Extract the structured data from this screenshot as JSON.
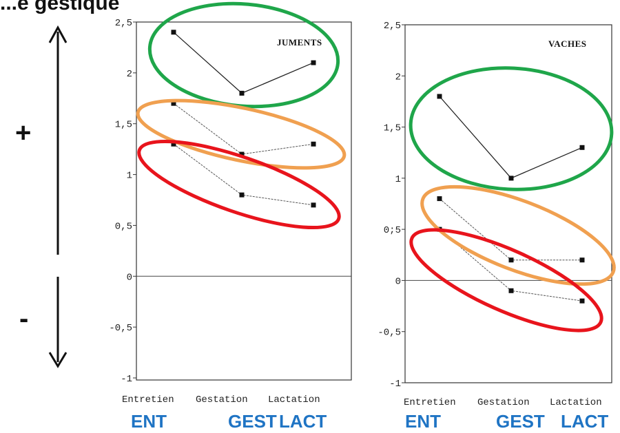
{
  "heading_fragment": "...e gestique",
  "signs": {
    "plus": "+",
    "minus": "-"
  },
  "colors": {
    "green": "#1fa64a",
    "orange": "#f0a050",
    "red": "#e8141c",
    "blue_label": "#1f74c4"
  },
  "chart_data": [
    {
      "type": "line",
      "title": "JUMENTS",
      "categories": [
        "Entretien",
        "Gestation",
        "Lactation"
      ],
      "category_labels": [
        "ENT",
        "GEST",
        "LACT"
      ],
      "y_ticks": [
        "2,5",
        "2",
        "1,5",
        "1",
        "0,5",
        "0",
        "-0,5",
        "-1"
      ],
      "ylim": [
        -1,
        2.5
      ],
      "series": [
        {
          "values": [
            2.4,
            1.8,
            2.1
          ],
          "highlight": "green"
        },
        {
          "values": [
            1.7,
            1.2,
            1.3
          ],
          "highlight": "orange"
        },
        {
          "values": [
            1.3,
            0.8,
            0.7
          ],
          "highlight": "red"
        }
      ]
    },
    {
      "type": "line",
      "title": "VACHES",
      "categories": [
        "Entretien",
        "Gestation",
        "Lactation"
      ],
      "category_labels": [
        "ENT",
        "GEST",
        "LACT"
      ],
      "y_ticks": [
        "2,5",
        "2",
        "1,5",
        "1",
        "0;5",
        "0",
        "-0,5",
        "-1"
      ],
      "ylim": [
        -1,
        2.5
      ],
      "series": [
        {
          "values": [
            1.8,
            1.0,
            1.3
          ],
          "highlight": "green"
        },
        {
          "values": [
            0.8,
            0.2,
            0.2
          ],
          "highlight": "orange"
        },
        {
          "values": [
            0.5,
            -0.1,
            -0.2
          ],
          "highlight": "red"
        }
      ]
    }
  ]
}
